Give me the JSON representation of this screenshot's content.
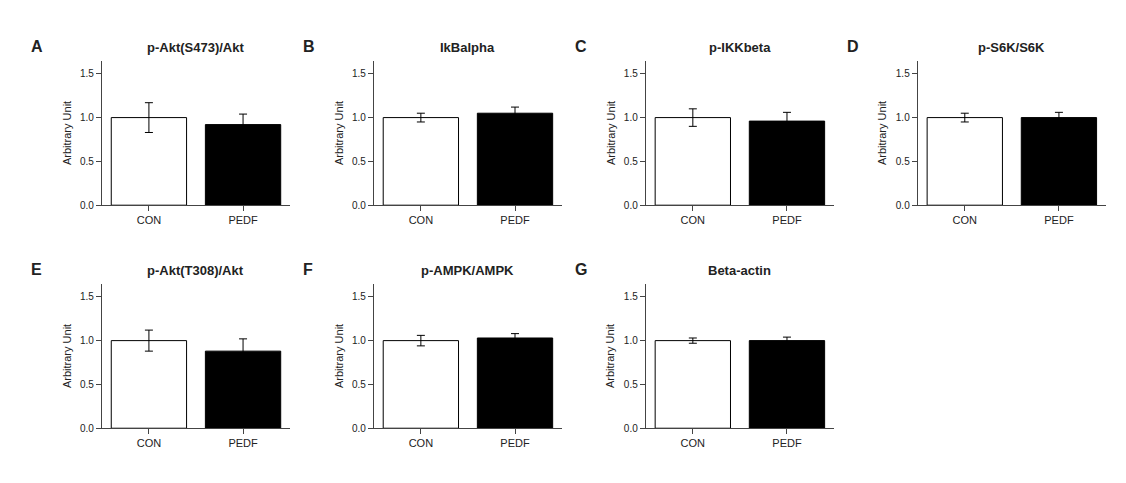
{
  "chart_data": [
    {
      "type": "bar",
      "title": "p-Akt(S473)/Akt",
      "annotations": [
        "A"
      ],
      "ylabel": "Arbitrary Unit",
      "categories": [
        "CON",
        "PEDF"
      ],
      "values": [
        1.0,
        0.92
      ],
      "errors": [
        0.17,
        0.12
      ],
      "colors": [
        "white",
        "black"
      ],
      "ylim": [
        0.0,
        1.65
      ],
      "yticks": [
        {
          "value": 0.0,
          "label": "0.0"
        },
        {
          "value": 0.5,
          "label": "0.5"
        },
        {
          "value": 1.0,
          "label": "1.0"
        },
        {
          "value": 1.5,
          "label": "1.5"
        }
      ],
      "grid": false
    },
    {
      "type": "bar",
      "title": "IkBalpha",
      "annotations": [
        "B"
      ],
      "ylabel": "Arbitrary Unit",
      "categories": [
        "CON",
        "PEDF"
      ],
      "values": [
        1.0,
        1.05
      ],
      "errors": [
        0.05,
        0.07
      ],
      "colors": [
        "white",
        "black"
      ],
      "ylim": [
        0.0,
        1.65
      ],
      "yticks": [
        {
          "value": 0.0,
          "label": "0.0"
        },
        {
          "value": 0.5,
          "label": "0.5"
        },
        {
          "value": 1.0,
          "label": "1.0"
        },
        {
          "value": 1.5,
          "label": "1.5"
        }
      ],
      "grid": false
    },
    {
      "type": "bar",
      "title": "p-IKKbeta",
      "annotations": [
        "C"
      ],
      "ylabel": "Arbitrary Unit",
      "categories": [
        "CON",
        "PEDF"
      ],
      "values": [
        1.0,
        0.96
      ],
      "errors": [
        0.1,
        0.1
      ],
      "colors": [
        "white",
        "black"
      ],
      "ylim": [
        0.0,
        1.65
      ],
      "yticks": [
        {
          "value": 0.0,
          "label": "0.0"
        },
        {
          "value": 0.5,
          "label": "0.5"
        },
        {
          "value": 1.0,
          "label": "1.0"
        },
        {
          "value": 1.5,
          "label": "1.5"
        }
      ],
      "grid": false
    },
    {
      "type": "bar",
      "title": "p-S6K/S6K",
      "annotations": [
        "D"
      ],
      "ylabel": "Arbitrary Unit",
      "categories": [
        "CON",
        "PEDF"
      ],
      "values": [
        1.0,
        1.0
      ],
      "errors": [
        0.05,
        0.06
      ],
      "colors": [
        "white",
        "black"
      ],
      "ylim": [
        0.0,
        1.65
      ],
      "yticks": [
        {
          "value": 0.0,
          "label": "0.0"
        },
        {
          "value": 0.5,
          "label": "0.5"
        },
        {
          "value": 1.0,
          "label": "1.0"
        },
        {
          "value": 1.5,
          "label": "1.5"
        }
      ],
      "grid": false
    },
    {
      "type": "bar",
      "title": "p-Akt(T308)/Akt",
      "annotations": [
        "E"
      ],
      "ylabel": "Arbitrary Unit",
      "categories": [
        "CON",
        "PEDF"
      ],
      "values": [
        1.0,
        0.88
      ],
      "errors": [
        0.12,
        0.14
      ],
      "colors": [
        "white",
        "black"
      ],
      "ylim": [
        0.0,
        1.65
      ],
      "yticks": [
        {
          "value": 0.0,
          "label": "0.0"
        },
        {
          "value": 0.5,
          "label": "0.5"
        },
        {
          "value": 1.0,
          "label": "1.0"
        },
        {
          "value": 1.5,
          "label": "1.5"
        }
      ],
      "grid": false
    },
    {
      "type": "bar",
      "title": "p-AMPK/AMPK",
      "annotations": [
        "F"
      ],
      "ylabel": "Arbitrary Unit",
      "categories": [
        "CON",
        "PEDF"
      ],
      "values": [
        1.0,
        1.03
      ],
      "errors": [
        0.06,
        0.05
      ],
      "colors": [
        "white",
        "black"
      ],
      "ylim": [
        0.0,
        1.65
      ],
      "yticks": [
        {
          "value": 0.0,
          "label": "0.0"
        },
        {
          "value": 0.5,
          "label": "0.5"
        },
        {
          "value": 1.0,
          "label": "1.0"
        },
        {
          "value": 1.5,
          "label": "1.5"
        }
      ],
      "grid": false
    },
    {
      "type": "bar",
      "title": "Beta-actin",
      "annotations": [
        "G"
      ],
      "ylabel": "Arbitrary Unit",
      "categories": [
        "CON",
        "PEDF"
      ],
      "values": [
        1.0,
        1.0
      ],
      "errors": [
        0.03,
        0.04
      ],
      "colors": [
        "white",
        "black"
      ],
      "ylim": [
        0.0,
        1.65
      ],
      "yticks": [
        {
          "value": 0.0,
          "label": "0.0"
        },
        {
          "value": 0.5,
          "label": "0.5"
        },
        {
          "value": 1.0,
          "label": "1.0"
        },
        {
          "value": 1.5,
          "label": "1.5"
        }
      ],
      "grid": false
    }
  ]
}
